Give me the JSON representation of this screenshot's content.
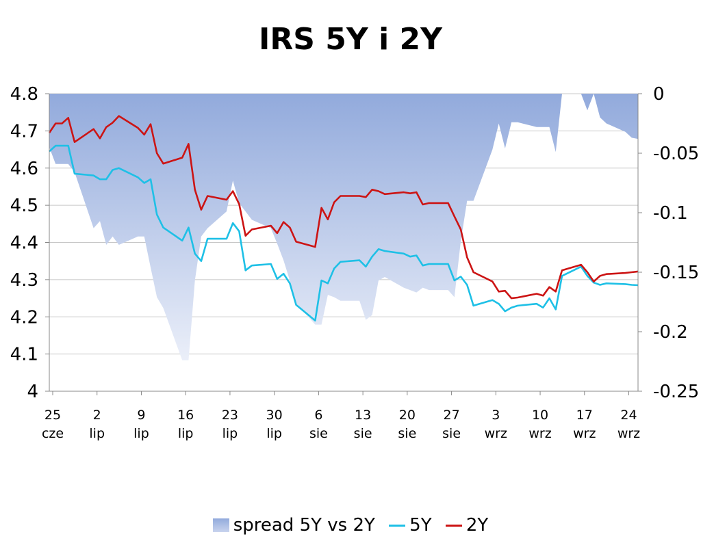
{
  "chart_data": {
    "type": "line",
    "title": "IRS 5Y i 2Y",
    "colors": {
      "spread": "#9eb3e0",
      "5Y": "#1ec0e6",
      "2Y": "#cc1414"
    },
    "x_ticks": [
      {
        "day": "25",
        "month": "cze"
      },
      {
        "day": "2",
        "month": "lip"
      },
      {
        "day": "9",
        "month": "lip"
      },
      {
        "day": "16",
        "month": "lip"
      },
      {
        "day": "23",
        "month": "lip"
      },
      {
        "day": "30",
        "month": "lip"
      },
      {
        "day": "6",
        "month": "sie"
      },
      {
        "day": "13",
        "month": "sie"
      },
      {
        "day": "20",
        "month": "sie"
      },
      {
        "day": "27",
        "month": "sie"
      },
      {
        "day": "3",
        "month": "wrz"
      },
      {
        "day": "10",
        "month": "wrz"
      },
      {
        "day": "17",
        "month": "wrz"
      },
      {
        "day": "24",
        "month": "wrz"
      }
    ],
    "y_left": {
      "min": 4,
      "max": 4.8,
      "ticks": [
        "4",
        "4.1",
        "4.2",
        "4.3",
        "4.4",
        "4.5",
        "4.6",
        "4.7",
        "4.8"
      ]
    },
    "y_right": {
      "min": -0.25,
      "max": 0,
      "ticks": [
        "0",
        "-0.05",
        "-0.1",
        "-0.15",
        "-0.2",
        "-0.25"
      ]
    },
    "x_range": [
      "2007-06-25",
      "2007-09-26"
    ],
    "grid": true,
    "legend_position": "bottom",
    "series": [
      {
        "name": "spread 5Y vs 2Y",
        "axis": "right",
        "style": "area",
        "points": [
          [
            "2007-06-25",
            -0.045
          ],
          [
            "2007-06-26",
            -0.059
          ],
          [
            "2007-06-27",
            -0.059
          ],
          [
            "2007-06-28",
            -0.059
          ],
          [
            "2007-06-29",
            -0.066
          ],
          [
            "2007-07-02",
            -0.113
          ],
          [
            "2007-07-03",
            -0.107
          ],
          [
            "2007-07-04",
            -0.127
          ],
          [
            "2007-07-05",
            -0.12
          ],
          [
            "2007-07-06",
            -0.127
          ],
          [
            "2007-07-09",
            -0.12
          ],
          [
            "2007-07-10",
            -0.12
          ],
          [
            "2007-07-11",
            -0.146
          ],
          [
            "2007-07-12",
            -0.171
          ],
          [
            "2007-07-13",
            -0.18
          ],
          [
            "2007-07-16",
            -0.224
          ],
          [
            "2007-07-17",
            -0.224
          ],
          [
            "2007-07-18",
            -0.157
          ],
          [
            "2007-07-19",
            -0.12
          ],
          [
            "2007-07-20",
            -0.113
          ],
          [
            "2007-07-23",
            -0.099
          ],
          [
            "2007-07-24",
            -0.073
          ],
          [
            "2007-07-25",
            -0.092
          ],
          [
            "2007-07-26",
            -0.099
          ],
          [
            "2007-07-27",
            -0.106
          ],
          [
            "2007-07-30",
            -0.113
          ],
          [
            "2007-07-31",
            -0.126
          ],
          [
            "2007-08-01",
            -0.14
          ],
          [
            "2007-08-02",
            -0.157
          ],
          [
            "2007-08-03",
            -0.176
          ],
          [
            "2007-08-06",
            -0.194
          ],
          [
            "2007-08-07",
            -0.194
          ],
          [
            "2007-08-08",
            -0.169
          ],
          [
            "2007-08-09",
            -0.171
          ],
          [
            "2007-08-10",
            -0.174
          ],
          [
            "2007-08-13",
            -0.174
          ],
          [
            "2007-08-14",
            -0.19
          ],
          [
            "2007-08-15",
            -0.186
          ],
          [
            "2007-08-16",
            -0.157
          ],
          [
            "2007-08-17",
            -0.154
          ],
          [
            "2007-08-20",
            -0.163
          ],
          [
            "2007-08-21",
            -0.165
          ],
          [
            "2007-08-22",
            -0.167
          ],
          [
            "2007-08-23",
            -0.163
          ],
          [
            "2007-08-24",
            -0.165
          ],
          [
            "2007-08-27",
            -0.165
          ],
          [
            "2007-08-28",
            -0.171
          ],
          [
            "2007-08-29",
            -0.124
          ],
          [
            "2007-08-30",
            -0.09
          ],
          [
            "2007-08-31",
            -0.09
          ],
          [
            "2007-09-03",
            -0.047
          ],
          [
            "2007-09-04",
            -0.025
          ],
          [
            "2007-09-05",
            -0.046
          ],
          [
            "2007-09-06",
            -0.024
          ],
          [
            "2007-09-07",
            -0.024
          ],
          [
            "2007-09-10",
            -0.028
          ],
          [
            "2007-09-11",
            -0.028
          ],
          [
            "2007-09-12",
            -0.028
          ],
          [
            "2007-09-13",
            -0.049
          ],
          [
            "2007-09-14",
            0.0
          ],
          [
            "2007-09-17",
            0.0
          ],
          [
            "2007-09-18",
            -0.014
          ],
          [
            "2007-09-19",
            0.0
          ],
          [
            "2007-09-20",
            -0.02
          ],
          [
            "2007-09-21",
            -0.025
          ],
          [
            "2007-09-24",
            -0.032
          ],
          [
            "2007-09-25",
            -0.037
          ],
          [
            "2007-09-26",
            -0.038
          ]
        ]
      },
      {
        "name": "5Y",
        "axis": "left",
        "style": "line",
        "points": [
          [
            "2007-06-25",
            4.645
          ],
          [
            "2007-06-26",
            4.66
          ],
          [
            "2007-06-27",
            4.66
          ],
          [
            "2007-06-28",
            4.66
          ],
          [
            "2007-06-29",
            4.585
          ],
          [
            "2007-07-02",
            4.58
          ],
          [
            "2007-07-03",
            4.57
          ],
          [
            "2007-07-04",
            4.57
          ],
          [
            "2007-07-05",
            4.595
          ],
          [
            "2007-07-06",
            4.6
          ],
          [
            "2007-07-09",
            4.575
          ],
          [
            "2007-07-10",
            4.56
          ],
          [
            "2007-07-11",
            4.57
          ],
          [
            "2007-07-12",
            4.475
          ],
          [
            "2007-07-13",
            4.44
          ],
          [
            "2007-07-16",
            4.405
          ],
          [
            "2007-07-17",
            4.44
          ],
          [
            "2007-07-18",
            4.37
          ],
          [
            "2007-07-19",
            4.35
          ],
          [
            "2007-07-20",
            4.41
          ],
          [
            "2007-07-23",
            4.41
          ],
          [
            "2007-07-24",
            4.452
          ],
          [
            "2007-07-25",
            4.43
          ],
          [
            "2007-07-26",
            4.325
          ],
          [
            "2007-07-27",
            4.338
          ],
          [
            "2007-07-30",
            4.342
          ],
          [
            "2007-07-31",
            4.302
          ],
          [
            "2007-08-01",
            4.316
          ],
          [
            "2007-08-02",
            4.29
          ],
          [
            "2007-08-03",
            4.232
          ],
          [
            "2007-08-06",
            4.19
          ],
          [
            "2007-08-07",
            4.298
          ],
          [
            "2007-08-08",
            4.29
          ],
          [
            "2007-08-09",
            4.33
          ],
          [
            "2007-08-10",
            4.348
          ],
          [
            "2007-08-13",
            4.352
          ],
          [
            "2007-08-14",
            4.335
          ],
          [
            "2007-08-15",
            4.362
          ],
          [
            "2007-08-16",
            4.382
          ],
          [
            "2007-08-17",
            4.377
          ],
          [
            "2007-08-20",
            4.37
          ],
          [
            "2007-08-21",
            4.362
          ],
          [
            "2007-08-22",
            4.365
          ],
          [
            "2007-08-23",
            4.338
          ],
          [
            "2007-08-24",
            4.342
          ],
          [
            "2007-08-27",
            4.342
          ],
          [
            "2007-08-28",
            4.298
          ],
          [
            "2007-08-29",
            4.308
          ],
          [
            "2007-08-30",
            4.286
          ],
          [
            "2007-08-31",
            4.23
          ],
          [
            "2007-09-03",
            4.245
          ],
          [
            "2007-09-04",
            4.235
          ],
          [
            "2007-09-05",
            4.215
          ],
          [
            "2007-09-06",
            4.225
          ],
          [
            "2007-09-07",
            4.23
          ],
          [
            "2007-09-10",
            4.235
          ],
          [
            "2007-09-11",
            4.225
          ],
          [
            "2007-09-12",
            4.25
          ],
          [
            "2007-09-13",
            4.22
          ],
          [
            "2007-09-14",
            4.31
          ],
          [
            "2007-09-17",
            4.335
          ],
          [
            "2007-09-18",
            4.31
          ],
          [
            "2007-09-19",
            4.292
          ],
          [
            "2007-09-20",
            4.286
          ],
          [
            "2007-09-21",
            4.29
          ],
          [
            "2007-09-24",
            4.288
          ],
          [
            "2007-09-25",
            4.286
          ],
          [
            "2007-09-26",
            4.285
          ]
        ]
      },
      {
        "name": "2Y",
        "axis": "left",
        "style": "line",
        "points": [
          [
            "2007-06-25",
            4.695
          ],
          [
            "2007-06-26",
            4.72
          ],
          [
            "2007-06-27",
            4.72
          ],
          [
            "2007-06-28",
            4.735
          ],
          [
            "2007-06-29",
            4.67
          ],
          [
            "2007-07-02",
            4.705
          ],
          [
            "2007-07-03",
            4.68
          ],
          [
            "2007-07-04",
            4.71
          ],
          [
            "2007-07-05",
            4.722
          ],
          [
            "2007-07-06",
            4.74
          ],
          [
            "2007-07-09",
            4.708
          ],
          [
            "2007-07-10",
            4.69
          ],
          [
            "2007-07-11",
            4.718
          ],
          [
            "2007-07-12",
            4.64
          ],
          [
            "2007-07-13",
            4.612
          ],
          [
            "2007-07-16",
            4.628
          ],
          [
            "2007-07-17",
            4.665
          ],
          [
            "2007-07-18",
            4.542
          ],
          [
            "2007-07-19",
            4.488
          ],
          [
            "2007-07-20",
            4.525
          ],
          [
            "2007-07-23",
            4.515
          ],
          [
            "2007-07-24",
            4.538
          ],
          [
            "2007-07-25",
            4.503
          ],
          [
            "2007-07-26",
            4.418
          ],
          [
            "2007-07-27",
            4.435
          ],
          [
            "2007-07-30",
            4.445
          ],
          [
            "2007-07-31",
            4.425
          ],
          [
            "2007-08-01",
            4.455
          ],
          [
            "2007-08-02",
            4.44
          ],
          [
            "2007-08-03",
            4.402
          ],
          [
            "2007-08-06",
            4.388
          ],
          [
            "2007-08-07",
            4.493
          ],
          [
            "2007-08-08",
            4.462
          ],
          [
            "2007-08-09",
            4.508
          ],
          [
            "2007-08-10",
            4.525
          ],
          [
            "2007-08-13",
            4.525
          ],
          [
            "2007-08-14",
            4.522
          ],
          [
            "2007-08-15",
            4.542
          ],
          [
            "2007-08-16",
            4.538
          ],
          [
            "2007-08-17",
            4.53
          ],
          [
            "2007-08-20",
            4.535
          ],
          [
            "2007-08-21",
            4.532
          ],
          [
            "2007-08-22",
            4.535
          ],
          [
            "2007-08-23",
            4.502
          ],
          [
            "2007-08-24",
            4.506
          ],
          [
            "2007-08-27",
            4.506
          ],
          [
            "2007-08-28",
            4.47
          ],
          [
            "2007-08-29",
            4.435
          ],
          [
            "2007-08-30",
            4.36
          ],
          [
            "2007-08-31",
            4.32
          ],
          [
            "2007-09-03",
            4.295
          ],
          [
            "2007-09-04",
            4.268
          ],
          [
            "2007-09-05",
            4.27
          ],
          [
            "2007-09-06",
            4.25
          ],
          [
            "2007-09-07",
            4.252
          ],
          [
            "2007-09-10",
            4.262
          ],
          [
            "2007-09-11",
            4.257
          ],
          [
            "2007-09-12",
            4.28
          ],
          [
            "2007-09-13",
            4.268
          ],
          [
            "2007-09-14",
            4.325
          ],
          [
            "2007-09-17",
            4.34
          ],
          [
            "2007-09-18",
            4.32
          ],
          [
            "2007-09-19",
            4.295
          ],
          [
            "2007-09-20",
            4.31
          ],
          [
            "2007-09-21",
            4.315
          ],
          [
            "2007-09-24",
            4.318
          ],
          [
            "2007-09-25",
            4.32
          ],
          [
            "2007-09-26",
            4.322
          ]
        ]
      }
    ]
  }
}
